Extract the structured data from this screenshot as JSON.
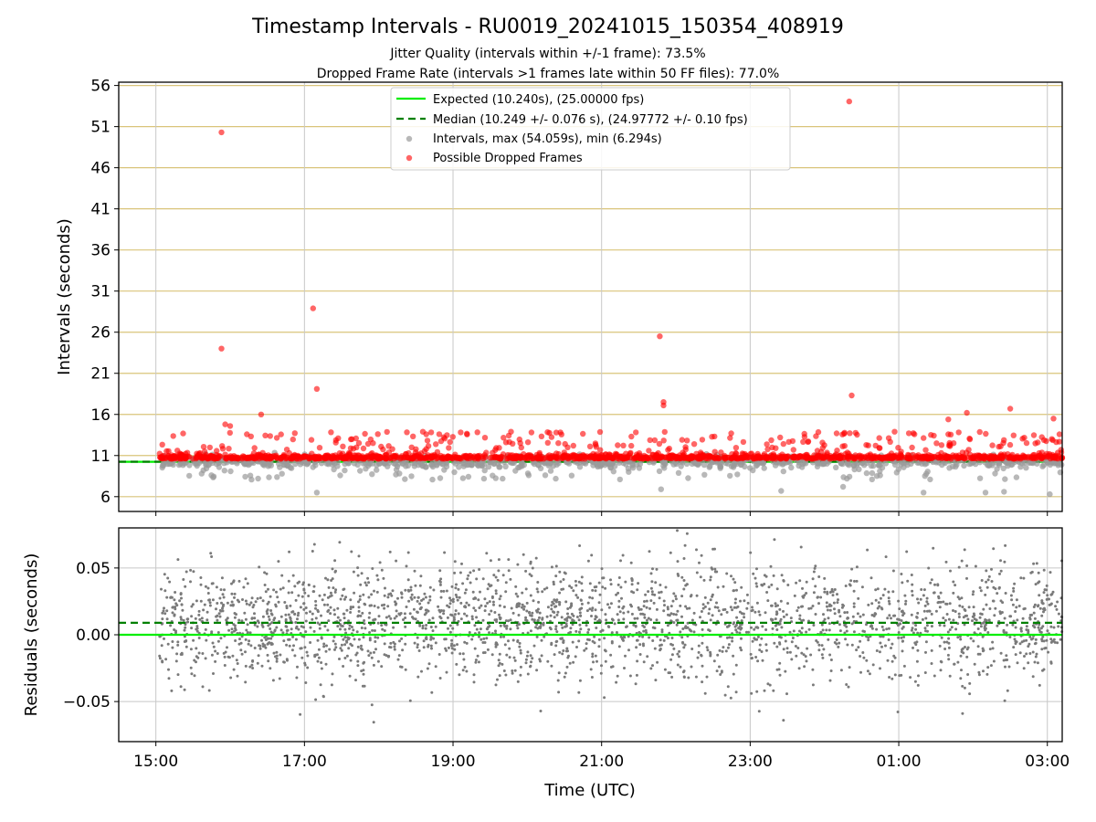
{
  "chart_data": [
    {
      "type": "scatter",
      "title": "Timestamp Intervals - RU0019_20241015_150354_408919",
      "subtitle_1": "Jitter Quality (intervals within +/-1 frame): 73.5%",
      "subtitle_2": "Dropped Frame Rate (intervals >1 frames late within 50 FF files): 77.0%",
      "ylabel": "Intervals (seconds)",
      "ylim": [
        4.2,
        56.4
      ],
      "yticks": [
        "6",
        "11",
        "16",
        "21",
        "26",
        "31",
        "36",
        "41",
        "46",
        "51",
        "56"
      ],
      "legend_position": "upper center",
      "legend": [
        "Expected (10.240s), (25.00000 fps)",
        "Median (10.249 +/- 0.076 s), (24.97772 +/- 0.10 fps)",
        "Intervals, max (54.059s), min (6.294s)",
        "Possible Dropped Frames"
      ],
      "expected_interval": 10.24,
      "median_interval": 10.249,
      "max_interval": 54.059,
      "min_interval": 6.294,
      "colors": {
        "expected": "#00ee00",
        "median": "#008000",
        "intervals": "#9a9a9a",
        "dropped": "#ff0000",
        "hgrid": "#d9c47a",
        "vgrid": "#c8c8c8"
      },
      "grid": true,
      "outliers_dropped": [
        [
          "15:53",
          50.3
        ],
        [
          "15:53",
          24.0
        ],
        [
          "17:07",
          28.9
        ],
        [
          "17:10",
          19.1
        ],
        [
          "21:47",
          25.5
        ],
        [
          "21:50",
          17.5
        ],
        [
          "21:50",
          17.1
        ],
        [
          "00:20",
          54.06
        ],
        [
          "00:22",
          18.3
        ],
        [
          "16:25",
          16.0
        ],
        [
          "01:40",
          15.4
        ],
        [
          "01:55",
          16.2
        ],
        [
          "02:30",
          16.7
        ],
        [
          "03:05",
          15.5
        ],
        [
          "15:56",
          14.8
        ],
        [
          "16:00",
          14.6
        ]
      ],
      "outliers_intervals": [
        [
          "17:10",
          6.5
        ],
        [
          "21:48",
          6.9
        ],
        [
          "23:25",
          6.7
        ],
        [
          "00:15",
          7.2
        ],
        [
          "01:20",
          6.5
        ],
        [
          "02:10",
          6.5
        ],
        [
          "02:25",
          6.6
        ],
        [
          "03:02",
          6.3
        ]
      ]
    },
    {
      "type": "scatter",
      "ylabel": "Residuals (seconds)",
      "xlabel": "Time (UTC)",
      "ylim": [
        -0.08,
        0.08
      ],
      "yticks": [
        "0.05",
        "0.00",
        "−0.05"
      ],
      "xticks": [
        "15:00",
        "17:00",
        "19:00",
        "21:00",
        "23:00",
        "01:00",
        "03:00"
      ],
      "x_range": [
        "14:30",
        "03:12"
      ],
      "expected_residual": 0.0,
      "median_residual": 0.009,
      "colors": {
        "points": "#7a7a7a",
        "expected": "#00ee00",
        "median": "#008000",
        "grid": "#c8c8c8"
      },
      "grid": true
    }
  ]
}
